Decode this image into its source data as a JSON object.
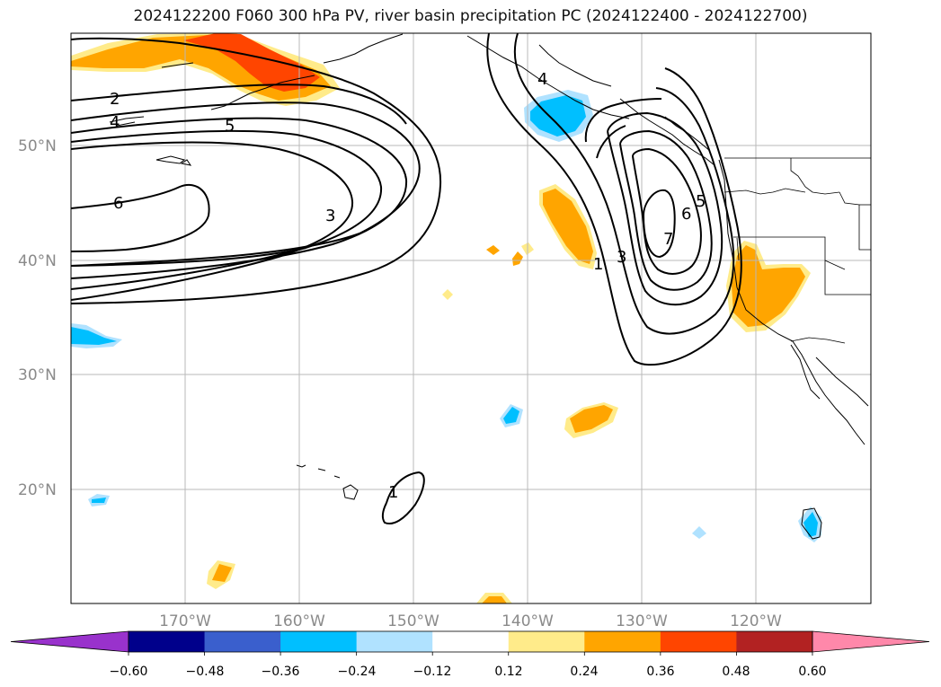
{
  "title": "2024122200 F060 300 hPa PV, river basin precipitation PC (2024122400 - 2024122700)",
  "lat_labels": [
    "50°N",
    "40°N",
    "30°N",
    "20°N"
  ],
  "lon_labels": [
    "170°W",
    "160°W",
    "150°W",
    "140°W",
    "130°W",
    "120°W"
  ],
  "colorbar": {
    "ticks": [
      "−0.60",
      "−0.48",
      "−0.36",
      "−0.24",
      "−0.12",
      "0.12",
      "0.24",
      "0.36",
      "0.48",
      "0.60"
    ],
    "colors": [
      "#9932cc",
      "#00008b",
      "#3a5fcd",
      "#00bfff",
      "#b0e2ff",
      "#ffffff",
      "#ffeb8a",
      "#ffa500",
      "#ff4500",
      "#b22222",
      "#ff88aa"
    ]
  },
  "pv_labels": [
    "2",
    "4",
    "5",
    "6",
    "3",
    "4",
    "1",
    "3",
    "7",
    "6",
    "5",
    "1"
  ],
  "fill_colors": {
    "light_yellow": "#ffeb8a",
    "orange": "#ffa500",
    "red_orange": "#ff4500",
    "light_blue": "#b0e2ff",
    "deep_sky_blue": "#00bfff"
  }
}
